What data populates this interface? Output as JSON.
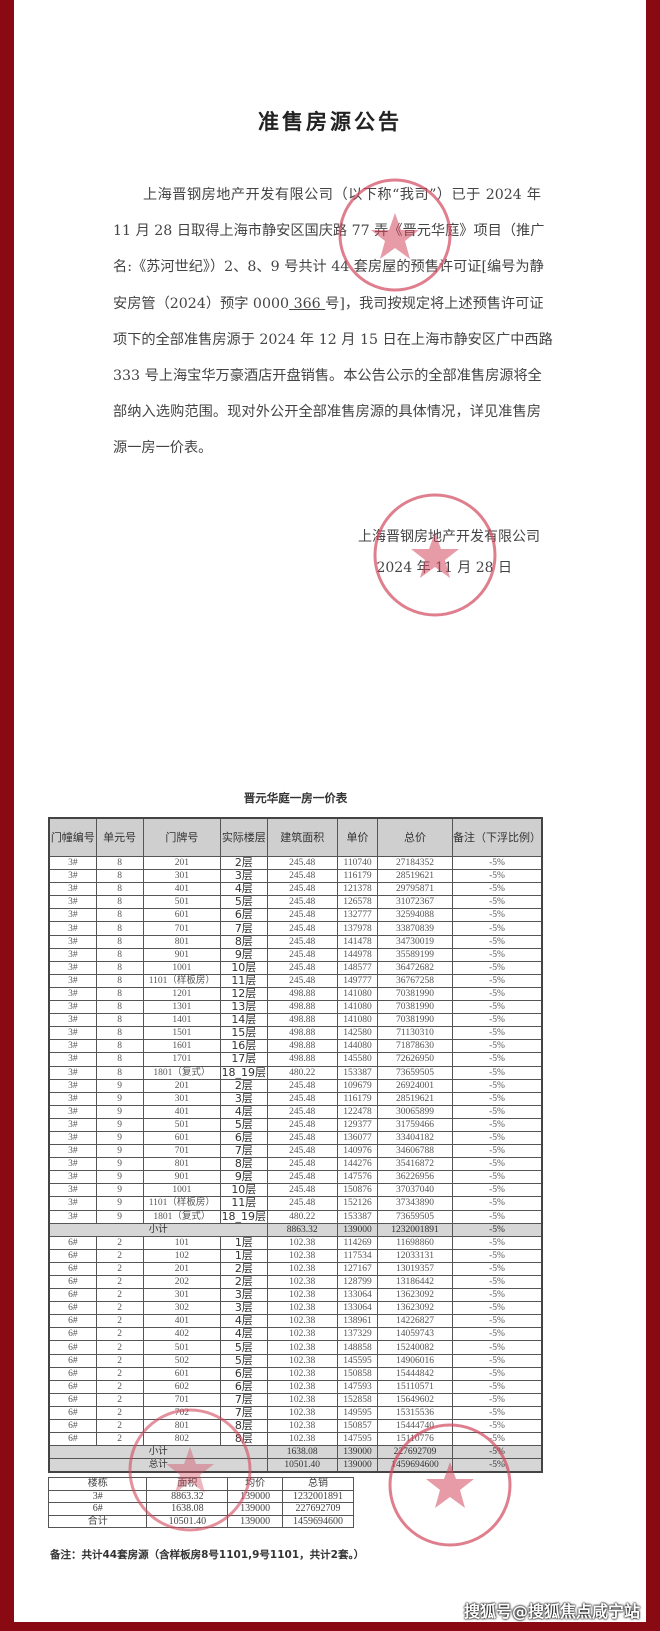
{
  "notice": {
    "title": "准售房源公告",
    "lines": [
      "上海晋钢房地产开发有限公司（以下称“我司”）已于 2024 年",
      "11 月 28 日取得上海市静安区国庆路 77 弄《晋元华庭》项目（推广",
      "名:《苏河世纪》）2、8、9 号共计 44 套房屋的预售许可证[编号为静",
      "项下的全部准售房源于 2024 年 12 月 15 日在上海市静安区广中西路",
      "333 号上海宝华万豪酒店开盘销售。本公告公示的全部准售房源将全",
      "部纳入选购范围。现对外公开全部准售房源的具体情况，详见准售房",
      "源一房一价表。"
    ],
    "permit_line": {
      "pre": "安房管（2024）预字 0000",
      "number": "366",
      "post": "号]，我司按规定将上述预售许可证"
    },
    "signature_company": "上海晋钢房地产开发有限公司",
    "signature_date": "2024 年 11 月 28 日"
  },
  "price_table": {
    "title": "晋元华庭一房一价表",
    "headers": [
      "门幢编号",
      "单元号",
      "门牌号",
      "实际楼层",
      "建筑面积",
      "单价",
      "总价",
      "备注（下浮比例）"
    ],
    "rows": [
      [
        "3#",
        "8",
        "201",
        "2层",
        "245.48",
        "110740",
        "27184352",
        "-5%"
      ],
      [
        "3#",
        "8",
        "301",
        "3层",
        "245.48",
        "116179",
        "28519621",
        "-5%"
      ],
      [
        "3#",
        "8",
        "401",
        "4层",
        "245.48",
        "121378",
        "29795871",
        "-5%"
      ],
      [
        "3#",
        "8",
        "501",
        "5层",
        "245.48",
        "126578",
        "31072367",
        "-5%"
      ],
      [
        "3#",
        "8",
        "601",
        "6层",
        "245.48",
        "132777",
        "32594088",
        "-5%"
      ],
      [
        "3#",
        "8",
        "701",
        "7层",
        "245.48",
        "137978",
        "33870839",
        "-5%"
      ],
      [
        "3#",
        "8",
        "801",
        "8层",
        "245.48",
        "141478",
        "34730019",
        "-5%"
      ],
      [
        "3#",
        "8",
        "901",
        "9层",
        "245.48",
        "144978",
        "35589199",
        "-5%"
      ],
      [
        "3#",
        "8",
        "1001",
        "10层",
        "245.48",
        "148577",
        "36472682",
        "-5%"
      ],
      [
        "3#",
        "8",
        "1101（样板房）",
        "11层",
        "245.48",
        "149777",
        "36767258",
        "-5%"
      ],
      [
        "3#",
        "8",
        "1201",
        "12层",
        "498.88",
        "141080",
        "70381990",
        "-5%"
      ],
      [
        "3#",
        "8",
        "1301",
        "13层",
        "498.88",
        "141080",
        "70381990",
        "-5%"
      ],
      [
        "3#",
        "8",
        "1401",
        "14层",
        "498.88",
        "141080",
        "70381990",
        "-5%"
      ],
      [
        "3#",
        "8",
        "1501",
        "15层",
        "498.88",
        "142580",
        "71130310",
        "-5%"
      ],
      [
        "3#",
        "8",
        "1601",
        "16层",
        "498.88",
        "144080",
        "71878630",
        "-5%"
      ],
      [
        "3#",
        "8",
        "1701",
        "17层",
        "498.88",
        "145580",
        "72626950",
        "-5%"
      ],
      [
        "3#",
        "8",
        "1801（复式）",
        "18_19层",
        "480.22",
        "153387",
        "73659505",
        "-5%"
      ],
      [
        "3#",
        "9",
        "201",
        "2层",
        "245.48",
        "109679",
        "26924001",
        "-5%"
      ],
      [
        "3#",
        "9",
        "301",
        "3层",
        "245.48",
        "116179",
        "28519621",
        "-5%"
      ],
      [
        "3#",
        "9",
        "401",
        "4层",
        "245.48",
        "122478",
        "30065899",
        "-5%"
      ],
      [
        "3#",
        "9",
        "501",
        "5层",
        "245.48",
        "129377",
        "31759466",
        "-5%"
      ],
      [
        "3#",
        "9",
        "601",
        "6层",
        "245.48",
        "136077",
        "33404182",
        "-5%"
      ],
      [
        "3#",
        "9",
        "701",
        "7层",
        "245.48",
        "140976",
        "34606788",
        "-5%"
      ],
      [
        "3#",
        "9",
        "801",
        "8层",
        "245.48",
        "144276",
        "35416872",
        "-5%"
      ],
      [
        "3#",
        "9",
        "901",
        "9层",
        "245.48",
        "147576",
        "36226956",
        "-5%"
      ],
      [
        "3#",
        "9",
        "1001",
        "10层",
        "245.48",
        "150876",
        "37037040",
        "-5%"
      ],
      [
        "3#",
        "9",
        "1101（样板房）",
        "11层",
        "245.48",
        "152126",
        "37343890",
        "-5%"
      ],
      [
        "3#",
        "9",
        "1801（复式）",
        "18_19层",
        "480.22",
        "153387",
        "73659505",
        "-5%"
      ],
      {
        "subtotal": "小计",
        "area": "8863.32",
        "price": "139000",
        "total": "1232001891",
        "note": "-5%"
      },
      [
        "6#",
        "2",
        "101",
        "1层",
        "102.38",
        "114269",
        "11698860",
        "-5%"
      ],
      [
        "6#",
        "2",
        "102",
        "1层",
        "102.38",
        "117534",
        "12033131",
        "-5%"
      ],
      [
        "6#",
        "2",
        "201",
        "2层",
        "102.38",
        "127167",
        "13019357",
        "-5%"
      ],
      [
        "6#",
        "2",
        "202",
        "2层",
        "102.38",
        "128799",
        "13186442",
        "-5%"
      ],
      [
        "6#",
        "2",
        "301",
        "3层",
        "102.38",
        "133064",
        "13623092",
        "-5%"
      ],
      [
        "6#",
        "2",
        "302",
        "3层",
        "102.38",
        "133064",
        "13623092",
        "-5%"
      ],
      [
        "6#",
        "2",
        "401",
        "4层",
        "102.38",
        "138961",
        "14226827",
        "-5%"
      ],
      [
        "6#",
        "2",
        "402",
        "4层",
        "102.38",
        "137329",
        "14059743",
        "-5%"
      ],
      [
        "6#",
        "2",
        "501",
        "5层",
        "102.38",
        "148858",
        "15240082",
        "-5%"
      ],
      [
        "6#",
        "2",
        "502",
        "5层",
        "102.38",
        "145595",
        "14906016",
        "-5%"
      ],
      [
        "6#",
        "2",
        "601",
        "6层",
        "102.38",
        "150858",
        "15444842",
        "-5%"
      ],
      [
        "6#",
        "2",
        "602",
        "6层",
        "102.38",
        "147593",
        "15110571",
        "-5%"
      ],
      [
        "6#",
        "2",
        "701",
        "7层",
        "102.38",
        "152858",
        "15649602",
        "-5%"
      ],
      [
        "6#",
        "2",
        "702",
        "7层",
        "102.38",
        "149595",
        "15315536",
        "-5%"
      ],
      [
        "6#",
        "2",
        "801",
        "8层",
        "102.38",
        "150857",
        "15444740",
        "-5%"
      ],
      [
        "6#",
        "2",
        "802",
        "8层",
        "102.38",
        "147595",
        "15110776",
        "-5%"
      ],
      {
        "subtotal": "小计",
        "area": "1638.08",
        "price": "139000",
        "total": "227692709",
        "note": "-5%"
      },
      {
        "subtotal": "总计",
        "area": "10501.40",
        "price": "139000",
        "total": "1459694600",
        "note": "-5%"
      }
    ]
  },
  "summary_table": {
    "headers": [
      "楼栋",
      "面积",
      "均价",
      "总销"
    ],
    "rows": [
      [
        "3#",
        "8863.32",
        "139000",
        "1232001891"
      ],
      [
        "6#",
        "1638.08",
        "139000",
        "227692709"
      ],
      [
        "合计",
        "10501.40",
        "139000",
        "1459694600"
      ]
    ]
  },
  "note": "备注：共计44套房源（含样板房8号1101,9号1101，共计2套。）",
  "watermark": "搜狐号@搜狐焦点咸宁站",
  "colors": {
    "frame": "#8a0a14",
    "stamp": "#d2485e"
  }
}
